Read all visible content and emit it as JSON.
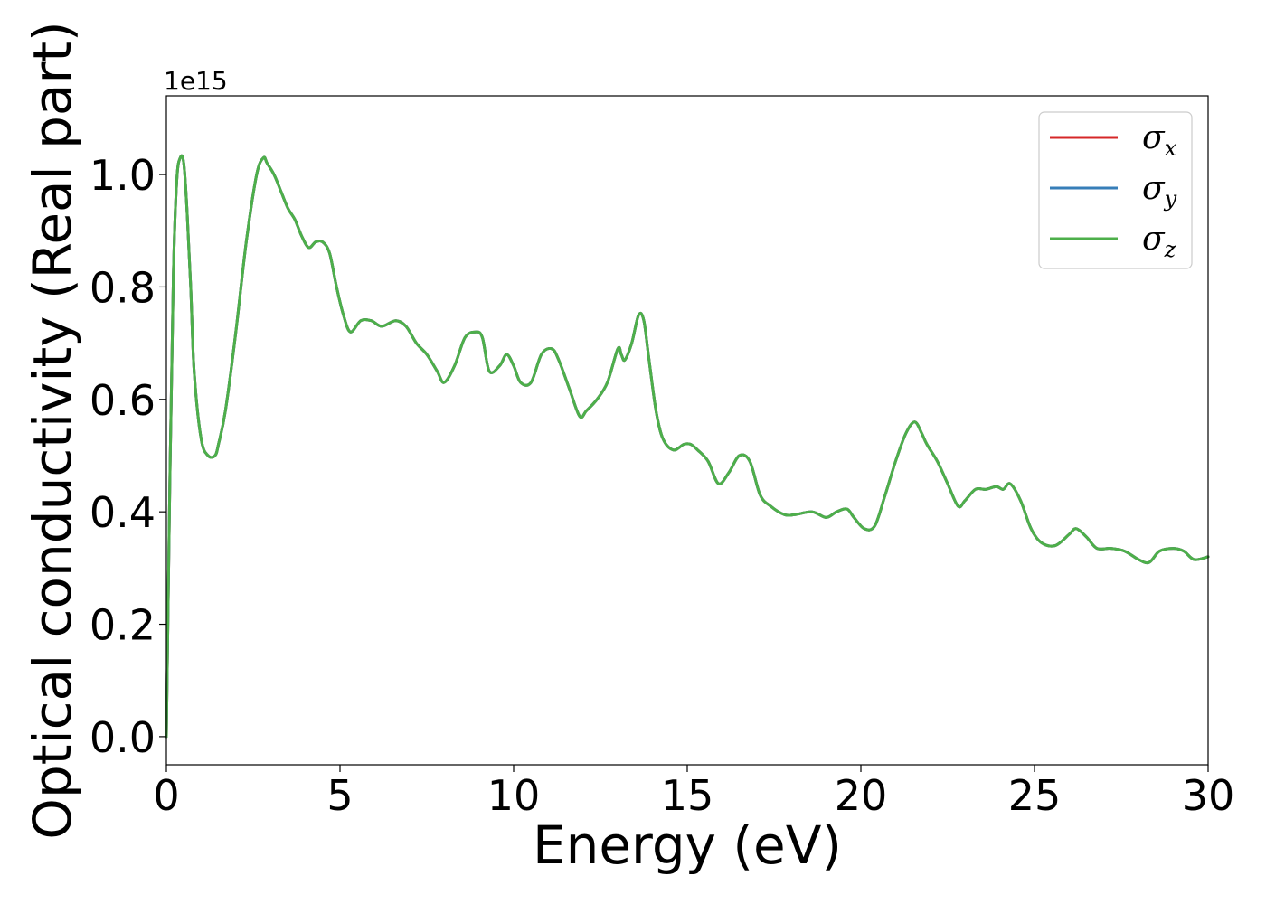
{
  "chart_data": {
    "type": "line",
    "xlabel": "Energy (eV)",
    "ylabel": "Optical conductivity (Real part)",
    "y_offset_label": "1e15",
    "xlim": [
      0,
      30
    ],
    "ylim": [
      -0.05,
      1.14
    ],
    "x_ticks": [
      0,
      5,
      10,
      15,
      20,
      25,
      30
    ],
    "x_tick_labels": [
      "0",
      "5",
      "10",
      "15",
      "20",
      "25",
      "30"
    ],
    "y_ticks": [
      0.0,
      0.2,
      0.4,
      0.6,
      0.8,
      1.0
    ],
    "y_tick_labels": [
      "0.0",
      "0.2",
      "0.4",
      "0.6",
      "0.8",
      "1.0"
    ],
    "grid": false,
    "legend_position": "top-right",
    "series": [
      {
        "name": "σ",
        "subscript": "x",
        "color": "#d62728"
      },
      {
        "name": "σ",
        "subscript": "y",
        "color": "#377eb8"
      },
      {
        "name": "σ",
        "subscript": "z",
        "color": "#4daf4a"
      }
    ],
    "x": [
      0,
      0.1,
      0.2,
      0.3,
      0.4,
      0.5,
      0.6,
      0.7,
      0.8,
      1.0,
      1.2,
      1.4,
      1.5,
      1.7,
      2.0,
      2.3,
      2.6,
      2.8,
      2.9,
      3.1,
      3.3,
      3.5,
      3.7,
      3.9,
      4.1,
      4.3,
      4.5,
      4.7,
      4.9,
      5.1,
      5.3,
      5.6,
      5.9,
      6.2,
      6.6,
      6.9,
      7.2,
      7.5,
      7.8,
      8.0,
      8.3,
      8.6,
      8.9,
      9.1,
      9.3,
      9.6,
      9.8,
      10.0,
      10.2,
      10.5,
      10.8,
      11.1,
      11.3,
      11.6,
      11.9,
      12.1,
      12.4,
      12.7,
      13.0,
      13.1,
      13.2,
      13.4,
      13.6,
      13.75,
      13.9,
      14.1,
      14.3,
      14.6,
      14.9,
      15.1,
      15.3,
      15.6,
      15.9,
      16.2,
      16.5,
      16.8,
      17.1,
      17.4,
      17.8,
      18.1,
      18.6,
      19.0,
      19.3,
      19.6,
      19.8,
      20.1,
      20.4,
      20.7,
      21.0,
      21.3,
      21.55,
      21.75,
      21.9,
      22.2,
      22.5,
      22.8,
      23.0,
      23.3,
      23.6,
      23.9,
      24.1,
      24.3,
      24.6,
      24.9,
      25.2,
      25.6,
      26.0,
      26.2,
      26.5,
      26.8,
      27.2,
      27.6,
      28.0,
      28.3,
      28.6,
      29.0,
      29.3,
      29.6,
      30.0
    ],
    "y": [
      0.0,
      0.45,
      0.82,
      0.99,
      1.03,
      1.02,
      0.93,
      0.8,
      0.65,
      0.53,
      0.5,
      0.5,
      0.52,
      0.58,
      0.72,
      0.88,
      1.0,
      1.03,
      1.02,
      1.0,
      0.97,
      0.94,
      0.92,
      0.89,
      0.87,
      0.88,
      0.88,
      0.86,
      0.8,
      0.75,
      0.72,
      0.74,
      0.74,
      0.73,
      0.74,
      0.73,
      0.7,
      0.68,
      0.65,
      0.63,
      0.66,
      0.71,
      0.72,
      0.71,
      0.65,
      0.66,
      0.68,
      0.66,
      0.63,
      0.63,
      0.68,
      0.69,
      0.67,
      0.62,
      0.57,
      0.58,
      0.6,
      0.63,
      0.69,
      0.68,
      0.67,
      0.7,
      0.75,
      0.74,
      0.67,
      0.58,
      0.53,
      0.51,
      0.52,
      0.52,
      0.51,
      0.49,
      0.45,
      0.47,
      0.5,
      0.49,
      0.43,
      0.41,
      0.395,
      0.395,
      0.4,
      0.39,
      0.4,
      0.405,
      0.39,
      0.37,
      0.375,
      0.43,
      0.49,
      0.54,
      0.56,
      0.54,
      0.52,
      0.49,
      0.45,
      0.41,
      0.42,
      0.44,
      0.44,
      0.445,
      0.44,
      0.45,
      0.42,
      0.37,
      0.345,
      0.34,
      0.36,
      0.37,
      0.355,
      0.335,
      0.335,
      0.33,
      0.315,
      0.31,
      0.33,
      0.335,
      0.33,
      0.315,
      0.32
    ]
  }
}
